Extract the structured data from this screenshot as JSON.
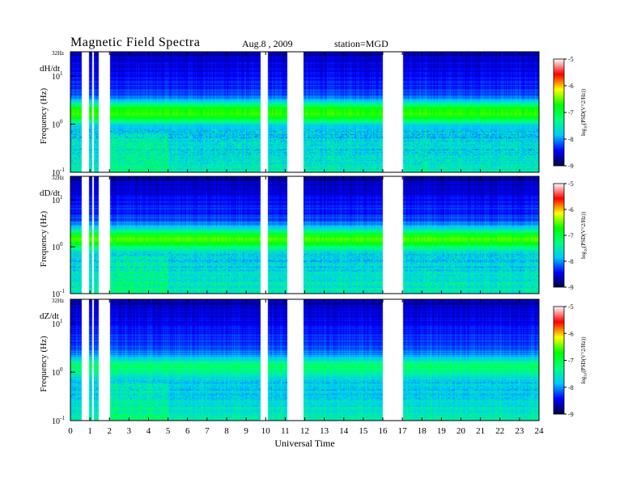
{
  "header": {
    "title": "Magnetic  Field  Spectra",
    "date": "Aug.8  , 2009",
    "station": "station=MGD"
  },
  "chart_data": {
    "type": "heatmap",
    "xlabel": "Universal Time",
    "x_ticks": [
      "0",
      "1",
      "2",
      "3",
      "4",
      "5",
      "6",
      "7",
      "8",
      "9",
      "10",
      "11",
      "12",
      "13",
      "14",
      "15",
      "16",
      "17",
      "18",
      "19",
      "20",
      "21",
      "22",
      "23",
      "24"
    ],
    "xlim": [
      0,
      24
    ],
    "ylabel": "Frequency  (Hz)",
    "y_scale": "log",
    "ylim": [
      0.1,
      32
    ],
    "y_top_label": "32Hz",
    "y_ticks": [
      {
        "value": 10,
        "base": "10",
        "exp": "1"
      },
      {
        "value": 1,
        "base": "10",
        "exp": "0"
      },
      {
        "value": 0.1,
        "base": "10",
        "exp": "-1"
      }
    ],
    "colorbar": {
      "label": "log10(PSD(V^2/Hz))",
      "label_prefix": "log",
      "label_sub": "10",
      "label_rest": "(PSD(V^2/Hz))",
      "range": [
        -9,
        -5
      ],
      "ticks": [
        "-5",
        "-6",
        "-7",
        "-8",
        "-9"
      ],
      "stops": [
        "#000040",
        "#0000ff",
        "#00c8ff",
        "#00ff80",
        "#00ff00",
        "#ffff00",
        "#ff0000",
        "#ffffff"
      ]
    },
    "data_gaps_hours": [
      [
        0.55,
        0.95
      ],
      [
        1.1,
        1.2
      ],
      [
        1.45,
        2.0
      ],
      [
        9.7,
        10.1
      ],
      [
        11.1,
        11.9
      ],
      [
        16.0,
        17.0
      ]
    ],
    "panels": [
      {
        "label": "dH/dt",
        "band_center_hz": 1.8,
        "band_strength": 1.0,
        "low_noise": 0.5
      },
      {
        "label": "dD/dt",
        "band_center_hz": 1.5,
        "band_strength": 1.0,
        "low_noise": 0.45
      },
      {
        "label": "dZ/dt",
        "band_center_hz": 1.3,
        "band_strength": 0.55,
        "low_noise": 0.35
      }
    ]
  }
}
